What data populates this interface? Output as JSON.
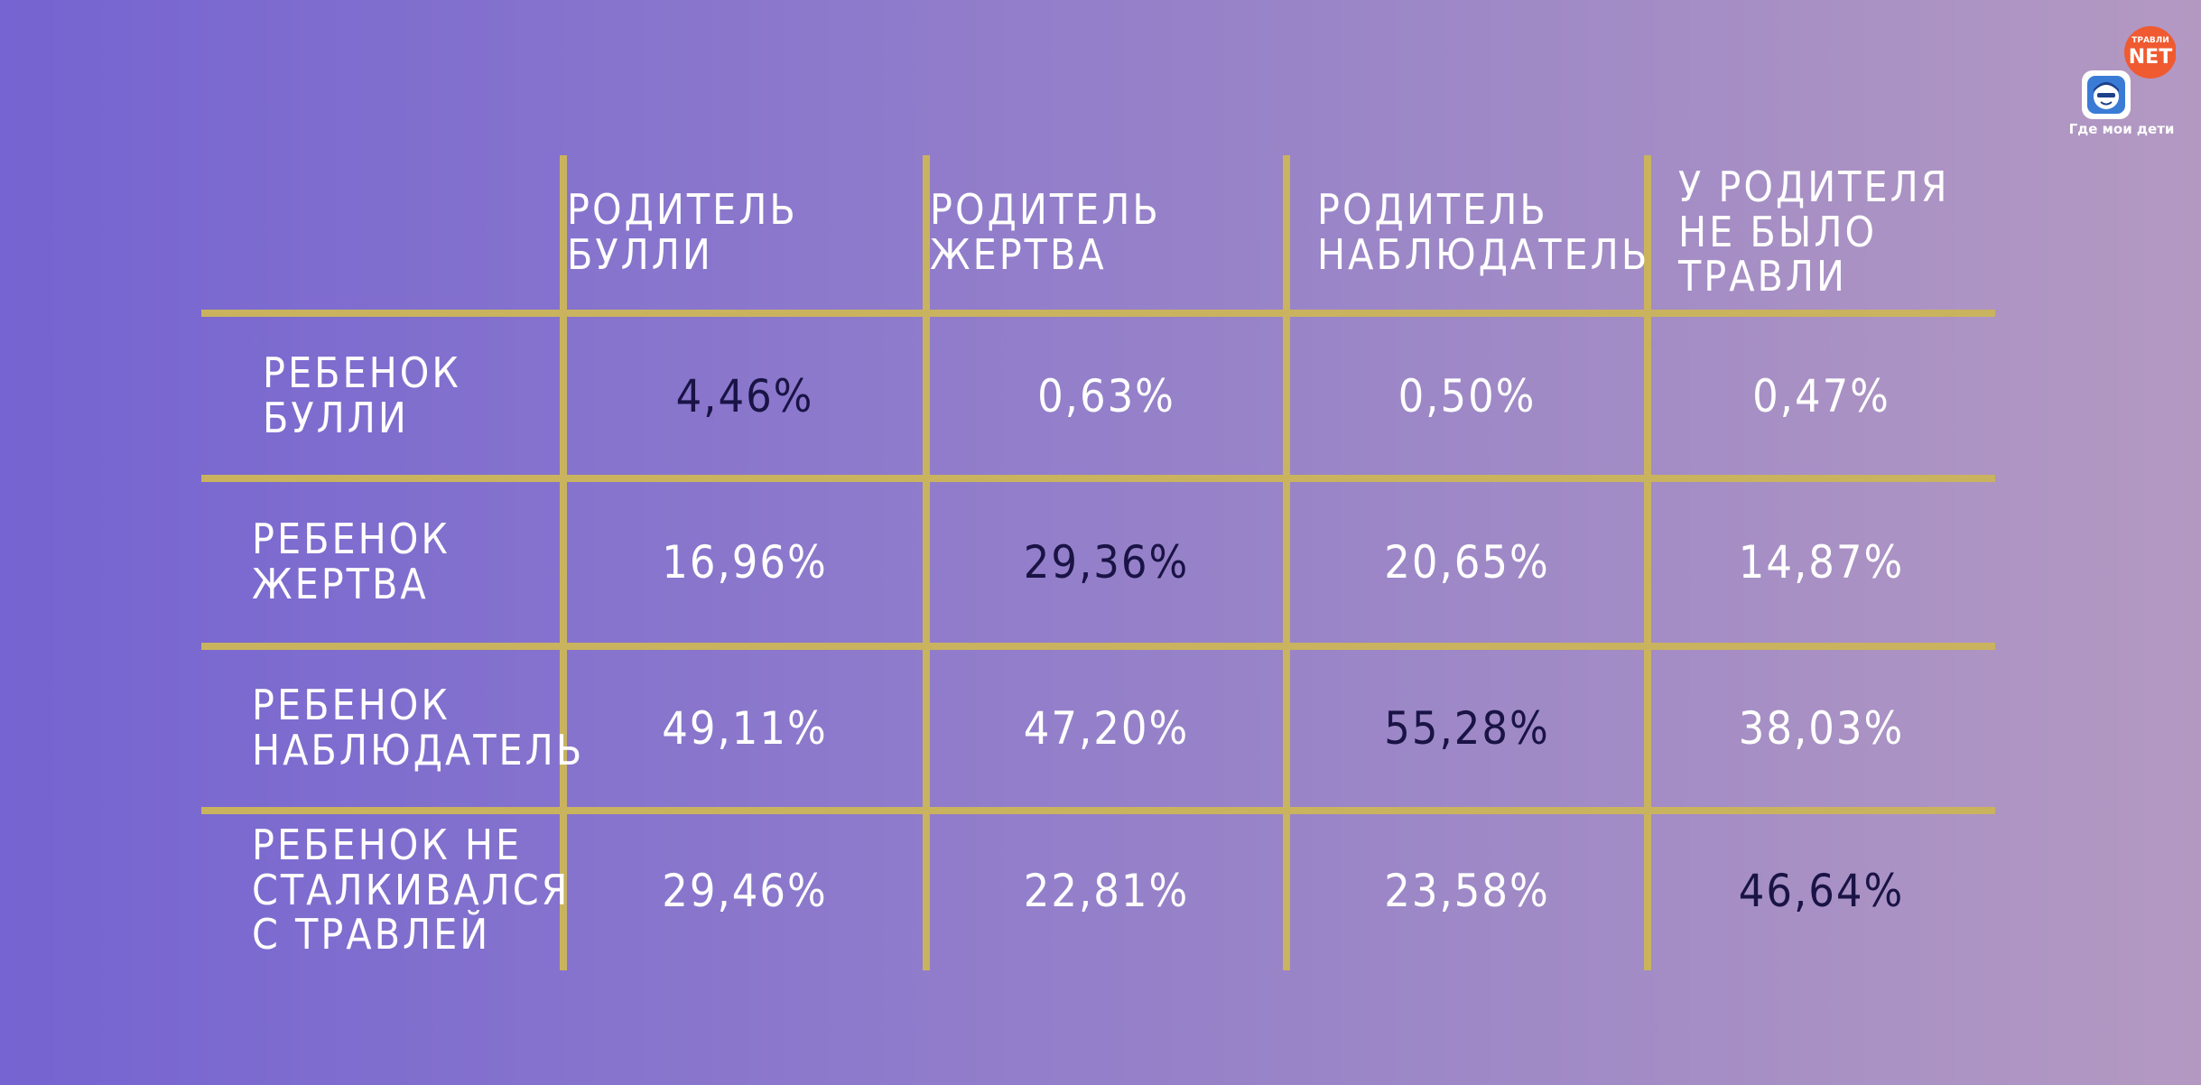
{
  "chart_data": {
    "type": "table",
    "columns": [
      "Родитель булли",
      "Родитель жертва",
      "Родитель\nнаблюдатель",
      "У родителя\nне было травли"
    ],
    "rows": [
      {
        "label": "Ребенок булли",
        "values": [
          "4,46%",
          "0,63%",
          "0,50%",
          "0,47%"
        ],
        "highlight_index": 0
      },
      {
        "label": "Ребенок жертва",
        "values": [
          "16,96%",
          "29,36%",
          "20,65%",
          "14,87%"
        ],
        "highlight_index": 1
      },
      {
        "label": "Ребенок\nнаблюдатель",
        "values": [
          "49,11%",
          "47,20%",
          "55,28%",
          "38,03%"
        ],
        "highlight_index": 2
      },
      {
        "label": "Ребенок не\nсталкивался\nс травлей",
        "values": [
          "29,46%",
          "22,81%",
          "23,58%",
          "46,64%"
        ],
        "highlight_index": 3
      }
    ]
  },
  "logo": {
    "badge_text": "NET",
    "badge_small_text": "ТРАВЛИ",
    "caption": "Где мои дети",
    "icon": "child-face-icon"
  },
  "colors": {
    "gridline": "#c9b35e",
    "text": "#ffffff",
    "highlight_text": "#1a1446",
    "badge": "#ef5a30",
    "icon_bg": "#3a7bd5"
  }
}
